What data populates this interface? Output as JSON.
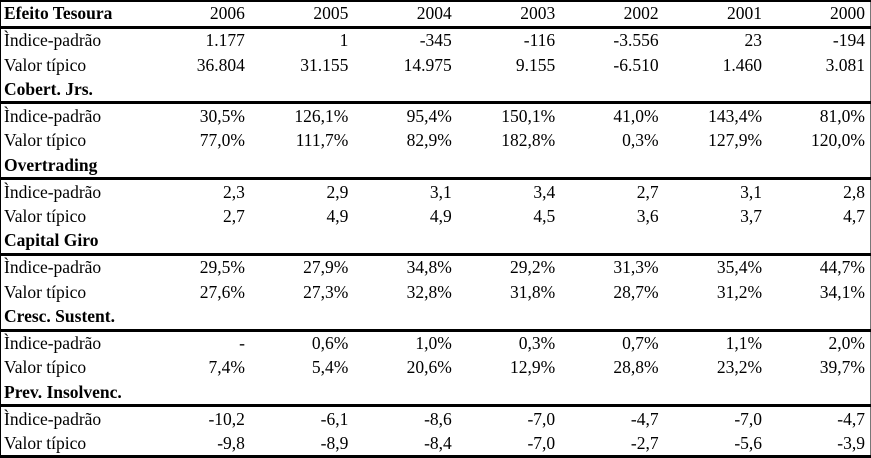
{
  "table": {
    "years": [
      "2006",
      "2005",
      "2004",
      "2003",
      "2002",
      "2001",
      "2000"
    ],
    "sections": [
      {
        "title": "Efeito Tesoura",
        "rows": [
          {
            "label": "Ìndice-padrão",
            "values": [
              "1.177",
              "1",
              "-345",
              "-116",
              "-3.556",
              "23",
              "-194"
            ]
          },
          {
            "label": "Valor típico",
            "values": [
              "36.804",
              "31.155",
              "14.975",
              "9.155",
              "-6.510",
              "1.460",
              "3.081"
            ]
          }
        ]
      },
      {
        "title": "Cobert. Jrs.",
        "rows": [
          {
            "label": "Ìndice-padrão",
            "values": [
              "30,5%",
              "126,1%",
              "95,4%",
              "150,1%",
              "41,0%",
              "143,4%",
              "81,0%"
            ]
          },
          {
            "label": "Valor típico",
            "values": [
              "77,0%",
              "111,7%",
              "82,9%",
              "182,8%",
              "0,3%",
              "127,9%",
              "120,0%"
            ]
          }
        ]
      },
      {
        "title": "Overtrading",
        "rows": [
          {
            "label": "Ìndice-padrão",
            "values": [
              "2,3",
              "2,9",
              "3,1",
              "3,4",
              "2,7",
              "3,1",
              "2,8"
            ]
          },
          {
            "label": "Valor típico",
            "values": [
              "2,7",
              "4,9",
              "4,9",
              "4,5",
              "3,6",
              "3,7",
              "4,7"
            ]
          }
        ]
      },
      {
        "title": "Capital Giro",
        "rows": [
          {
            "label": "Ìndice-padrão",
            "values": [
              "29,5%",
              "27,9%",
              "34,8%",
              "29,2%",
              "31,3%",
              "35,4%",
              "44,7%"
            ]
          },
          {
            "label": "Valor típico",
            "values": [
              "27,6%",
              "27,3%",
              "32,8%",
              "31,8%",
              "28,7%",
              "31,2%",
              "34,1%"
            ]
          }
        ]
      },
      {
        "title": "Cresc. Sustent.",
        "rows": [
          {
            "label": "Ìndice-padrão",
            "values": [
              "-",
              "0,6%",
              "1,0%",
              "0,3%",
              "0,7%",
              "1,1%",
              "2,0%"
            ]
          },
          {
            "label": "Valor típico",
            "values": [
              "7,4%",
              "5,4%",
              "20,6%",
              "12,9%",
              "28,8%",
              "23,2%",
              "39,7%"
            ]
          }
        ]
      },
      {
        "title": "Prev. Insolvenc.",
        "rows": [
          {
            "label": "Ìndice-padrão",
            "values": [
              "-10,2",
              "-6,1",
              "-8,6",
              "-7,0",
              "-4,7",
              "-7,0",
              "-4,7"
            ]
          },
          {
            "label": "Valor típico",
            "values": [
              "-9,8",
              "-8,9",
              "-8,4",
              "-7,0",
              "-2,7",
              "-5,6",
              "-3,9"
            ]
          }
        ]
      }
    ]
  }
}
